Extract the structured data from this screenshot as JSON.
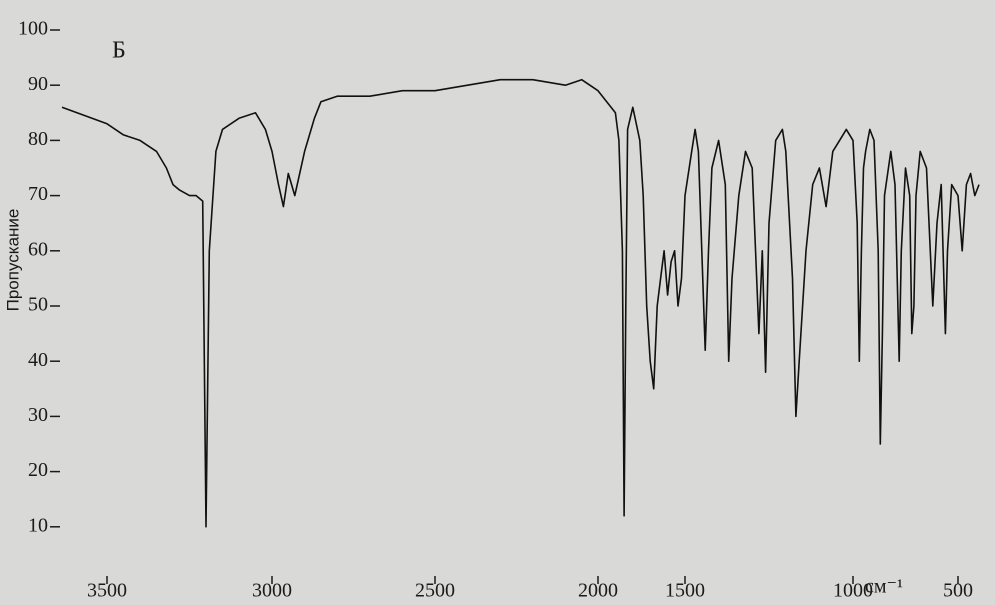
{
  "chart_data": {
    "type": "line",
    "y_label": "Пропускание",
    "panel_label": "Б",
    "x_unit_label": "см⁻¹",
    "xlim": [
      3650,
      400
    ],
    "xticks": [
      3500,
      3000,
      2500,
      2000,
      1500,
      1000,
      500
    ],
    "ylim": [
      0,
      100
    ],
    "yticks": [
      100,
      90,
      80,
      70,
      60,
      50,
      40,
      30,
      20,
      10
    ],
    "x": [
      3650,
      3600,
      3550,
      3500,
      3450,
      3400,
      3350,
      3320,
      3300,
      3280,
      3250,
      3230,
      3210,
      3200,
      3190,
      3170,
      3150,
      3100,
      3050,
      3020,
      3000,
      2980,
      2965,
      2950,
      2930,
      2900,
      2870,
      2850,
      2800,
      2700,
      2600,
      2500,
      2400,
      2300,
      2200,
      2100,
      2050,
      2000,
      1950,
      1900,
      1880,
      1860,
      1850,
      1840,
      1830,
      1800,
      1760,
      1740,
      1720,
      1700,
      1680,
      1660,
      1640,
      1620,
      1600,
      1580,
      1560,
      1540,
      1520,
      1500,
      1480,
      1470,
      1460,
      1450,
      1440,
      1430,
      1420,
      1400,
      1380,
      1370,
      1360,
      1340,
      1320,
      1300,
      1280,
      1270,
      1260,
      1250,
      1230,
      1210,
      1200,
      1180,
      1170,
      1160,
      1140,
      1120,
      1100,
      1080,
      1060,
      1040,
      1020,
      1000,
      980,
      970,
      960,
      950,
      940,
      920,
      900,
      880,
      870,
      860,
      850,
      820,
      800,
      780,
      770,
      750,
      730,
      720,
      710,
      700,
      680,
      650,
      620,
      600,
      580,
      560,
      550,
      530,
      500,
      480,
      460,
      440,
      420,
      400
    ],
    "series": [
      {
        "color": "#111111",
        "values": [
          86,
          85,
          84,
          83,
          81,
          80,
          78,
          75,
          72,
          71,
          70,
          70,
          69,
          10,
          60,
          78,
          82,
          84,
          85,
          82,
          78,
          72,
          68,
          74,
          70,
          78,
          84,
          87,
          88,
          88,
          89,
          89,
          90,
          91,
          91,
          90,
          91,
          89,
          87,
          85,
          80,
          60,
          12,
          50,
          82,
          86,
          80,
          70,
          50,
          40,
          35,
          50,
          55,
          60,
          52,
          58,
          60,
          50,
          55,
          70,
          78,
          82,
          78,
          60,
          42,
          60,
          75,
          80,
          72,
          40,
          55,
          70,
          78,
          75,
          45,
          60,
          38,
          65,
          80,
          82,
          78,
          55,
          30,
          40,
          60,
          72,
          75,
          68,
          78,
          80,
          82,
          80,
          65,
          40,
          60,
          75,
          78,
          82,
          80,
          60,
          25,
          45,
          70,
          78,
          72,
          40,
          60,
          75,
          70,
          45,
          50,
          70,
          78,
          75,
          50,
          65,
          72,
          45,
          60,
          72,
          70,
          60,
          72,
          74,
          70,
          72
        ]
      }
    ]
  }
}
